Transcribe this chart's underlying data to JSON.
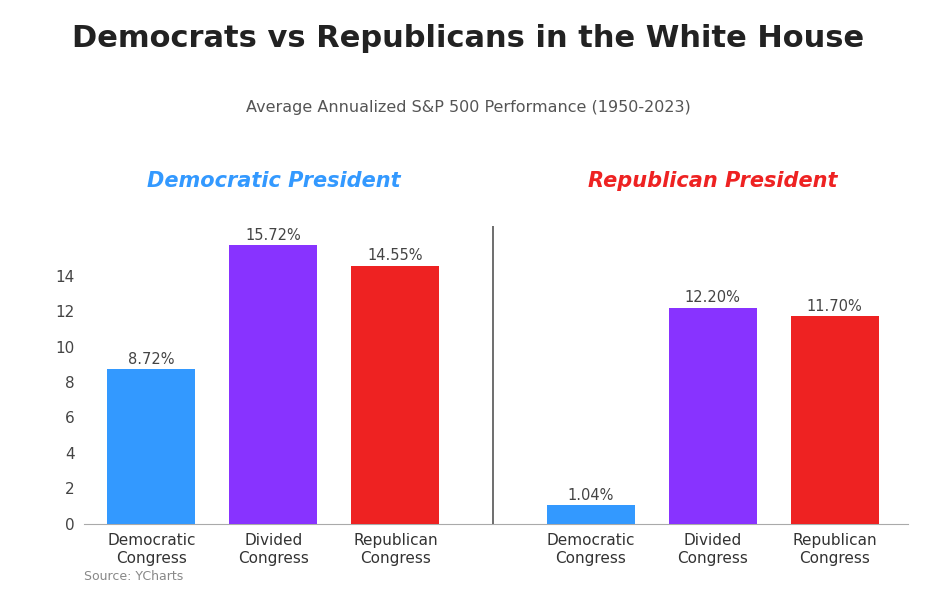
{
  "title": "Democrats vs Republicans in the White House",
  "subtitle": "Average Annualized S&P 500 Performance (1950-2023)",
  "source": "Source: YCharts",
  "dem_president_label": "Democratic President",
  "rep_president_label": "Republican President",
  "dem_president_color": "#3399FF",
  "rep_president_color": "#EE2222",
  "categories": [
    "Democratic\nCongress",
    "Divided\nCongress",
    "Republican\nCongress"
  ],
  "dem_values": [
    8.72,
    15.72,
    14.55
  ],
  "rep_values": [
    1.04,
    12.2,
    11.7
  ],
  "dem_bar_colors": [
    "#3399FF",
    "#8833FF",
    "#EE2222"
  ],
  "rep_bar_colors": [
    "#3399FF",
    "#8833FF",
    "#EE2222"
  ],
  "ylim": [
    0,
    16.8
  ],
  "yticks": [
    0,
    2,
    4,
    6,
    8,
    10,
    12,
    14
  ],
  "background_color": "#FFFFFF",
  "title_fontsize": 22,
  "subtitle_fontsize": 11.5,
  "label_fontsize": 11,
  "bar_label_fontsize": 10.5,
  "section_label_fontsize": 15
}
